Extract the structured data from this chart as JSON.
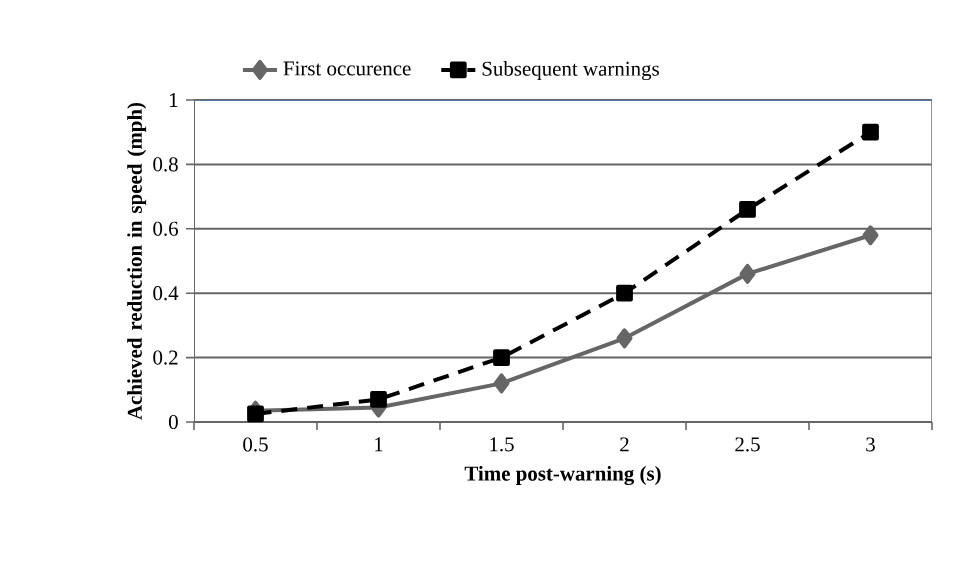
{
  "chart_data": {
    "type": "line",
    "xlabel": "Time post-warning (s)",
    "ylabel": "Achieved reduction in speed (mph)",
    "categories": [
      "0.5",
      "1",
      "1.5",
      "2",
      "2.5",
      "3"
    ],
    "series": [
      {
        "name": "First occurence",
        "color": "#666666",
        "marker": "diamond",
        "line_style": "solid",
        "values": [
          0.035,
          0.045,
          0.12,
          0.26,
          0.46,
          0.58
        ]
      },
      {
        "name": "Subsequent warnings",
        "color": "#000000",
        "marker": "square",
        "line_style": "dashed",
        "values": [
          0.025,
          0.07,
          0.2,
          0.4,
          0.66,
          0.9
        ]
      }
    ],
    "ylim": [
      0,
      1
    ],
    "yticks": [
      0,
      0.2,
      0.4,
      0.6,
      0.8,
      1
    ],
    "grid": "y",
    "legend": "top"
  }
}
